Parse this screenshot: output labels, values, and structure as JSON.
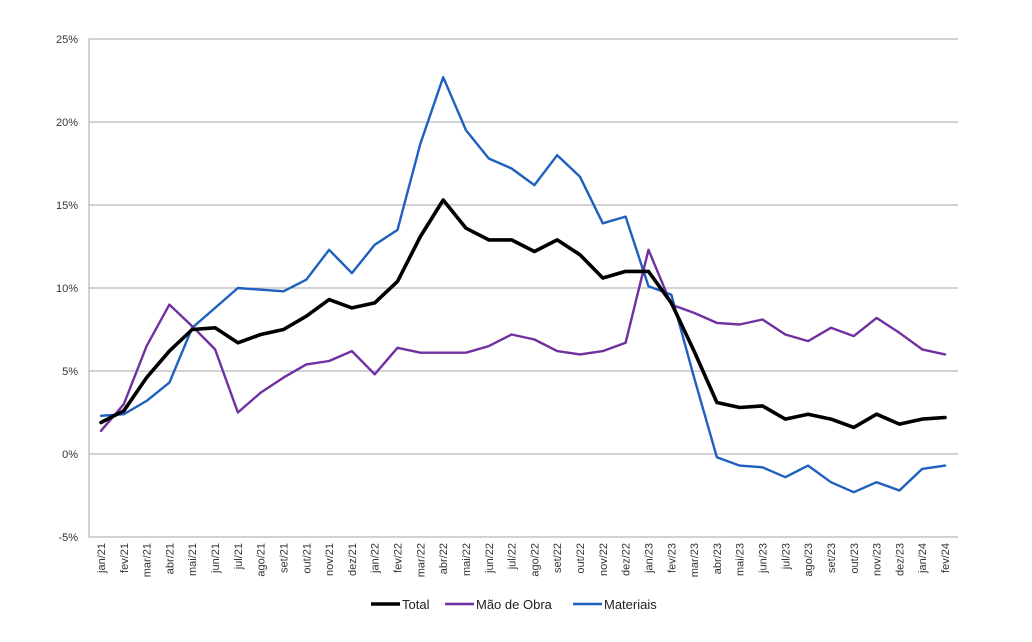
{
  "chart_data": {
    "type": "line",
    "title": "",
    "xlabel": "",
    "ylabel": "",
    "ylim": [
      -5,
      25
    ],
    "y_ticks": [
      "-5%",
      "0%",
      "5%",
      "10%",
      "15%",
      "20%",
      "25%"
    ],
    "y_tick_values": [
      -5,
      0,
      5,
      10,
      15,
      20,
      25
    ],
    "grid": "horizontal",
    "legend_position": "bottom",
    "categories": [
      "jan/21",
      "fev/21",
      "mar/21",
      "abr/21",
      "mai/21",
      "jun/21",
      "jul/21",
      "ago/21",
      "set/21",
      "out/21",
      "nov/21",
      "dez/21",
      "jan/22",
      "fev/22",
      "mar/22",
      "abr/22",
      "mai/22",
      "jun/22",
      "jul/22",
      "ago/22",
      "set/22",
      "out/22",
      "nov/22",
      "dez/22",
      "jan/23",
      "fev/23",
      "mar/23",
      "abr/23",
      "mai/23",
      "jun/23",
      "jul/23",
      "ago/23",
      "set/23",
      "out/23",
      "nov/23",
      "dez/23",
      "jan/24",
      "fev/24"
    ],
    "series": [
      {
        "name": "Total",
        "color": "#000000",
        "values": [
          1.9,
          2.6,
          4.6,
          6.2,
          7.5,
          7.6,
          6.7,
          7.2,
          7.5,
          8.3,
          9.3,
          8.8,
          9.1,
          10.4,
          13.1,
          15.3,
          13.6,
          12.9,
          12.9,
          12.2,
          12.9,
          12.0,
          10.6,
          11.0,
          11.0,
          9.1,
          6.2,
          3.1,
          2.8,
          2.9,
          2.1,
          2.4,
          2.1,
          1.6,
          2.4,
          1.8,
          2.1,
          2.2
        ]
      },
      {
        "name": "Mão de Obra",
        "color": "#7030A0",
        "values": [
          1.4,
          3.0,
          6.5,
          9.0,
          7.7,
          6.3,
          2.5,
          3.7,
          4.6,
          5.4,
          5.6,
          6.2,
          4.8,
          6.4,
          6.1,
          6.1,
          6.1,
          6.5,
          7.2,
          6.9,
          6.2,
          6.0,
          6.2,
          6.7,
          12.3,
          9.0,
          8.5,
          7.9,
          7.8,
          8.1,
          7.2,
          6.8,
          7.6,
          7.1,
          8.2,
          7.3,
          6.3,
          6.0
        ]
      },
      {
        "name": "Materiais",
        "color": "#1F5FBF",
        "values": [
          2.3,
          2.4,
          3.2,
          4.3,
          7.6,
          8.8,
          10.0,
          9.9,
          9.8,
          10.5,
          12.3,
          10.9,
          12.6,
          13.5,
          18.7,
          22.7,
          19.5,
          17.8,
          17.2,
          16.2,
          18.0,
          16.7,
          13.9,
          14.3,
          10.1,
          9.6,
          4.6,
          -0.2,
          -0.7,
          -0.8,
          -1.4,
          -0.7,
          -1.7,
          -2.3,
          -1.7,
          -2.2,
          -0.9,
          -0.7
        ]
      }
    ]
  }
}
